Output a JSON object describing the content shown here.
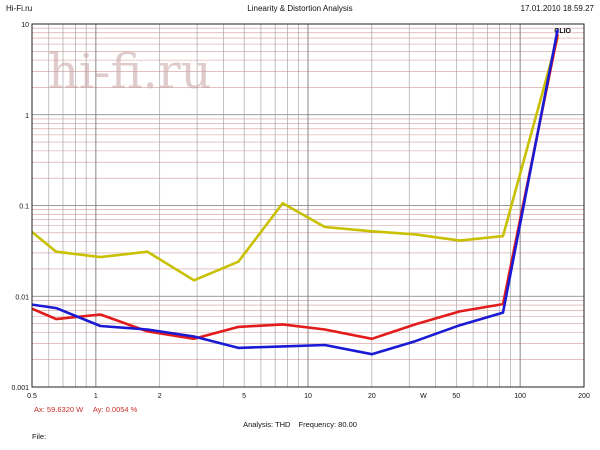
{
  "header": {
    "left": "Hi-Fi.ru",
    "center": "Linearity & Distortion Analysis",
    "right": "17.01.2010 18.59.27"
  },
  "watermark": {
    "text": "hi-fi.ru",
    "color": "#c8a3a6"
  },
  "brand_logo": "CLIO",
  "cursor": {
    "ax": "Ax: 59.6320 W",
    "ay": "Ay: 0.0054 %"
  },
  "analysis": {
    "label": "Analysis: THD",
    "frequency": "Frequency: 80.00"
  },
  "file": {
    "label": "File:"
  },
  "colors": {
    "grid_major": "#7a7a7a",
    "grid_minor": "#d49a9a",
    "frame": "#222222"
  },
  "chart_data": {
    "type": "line",
    "title": "Linearity & Distortion Analysis",
    "x_scale": "log",
    "y_scale": "log",
    "xlim": [
      0.5,
      200
    ],
    "ylim": [
      0.001,
      10
    ],
    "x_tick_labels": [
      "0.5",
      "1",
      "2",
      "5",
      "10",
      "20",
      "W",
      "50",
      "100",
      "200"
    ],
    "x_tick_values": [
      0.5,
      1,
      2,
      5,
      10,
      20,
      35,
      50,
      100,
      200
    ],
    "y_tick_labels": [
      "10",
      "1",
      "0.1",
      "0.01",
      "0.001"
    ],
    "y_tick_values": [
      10,
      1,
      0.1,
      0.01,
      0.001
    ],
    "grid": true,
    "series": [
      {
        "color": "#c8c000",
        "x": [
          0.5,
          0.65,
          1.05,
          1.75,
          2.9,
          4.7,
          7.6,
          12,
          20,
          32,
          52,
          83,
          150
        ],
        "y": [
          0.051,
          0.031,
          0.027,
          0.031,
          0.015,
          0.024,
          0.106,
          0.058,
          0.052,
          0.048,
          0.041,
          0.046,
          7.0
        ]
      },
      {
        "color": "#e21b1b",
        "x": [
          0.5,
          0.65,
          1.05,
          1.75,
          2.9,
          4.7,
          7.6,
          12,
          20,
          32,
          52,
          83,
          150
        ],
        "y": [
          0.0073,
          0.0056,
          0.0063,
          0.0041,
          0.0034,
          0.0046,
          0.0049,
          0.0043,
          0.0034,
          0.0049,
          0.0068,
          0.0082,
          7.5
        ]
      },
      {
        "color": "#1a1ad4",
        "x": [
          0.5,
          0.65,
          1.05,
          1.75,
          2.9,
          4.7,
          7.6,
          12,
          20,
          32,
          52,
          83,
          150
        ],
        "y": [
          0.0081,
          0.0074,
          0.0047,
          0.0043,
          0.0036,
          0.0027,
          0.0028,
          0.0029,
          0.0023,
          0.0032,
          0.0048,
          0.0066,
          8.5
        ]
      }
    ]
  }
}
